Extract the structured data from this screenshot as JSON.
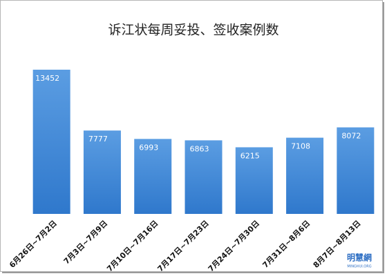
{
  "chart_data": {
    "type": "bar",
    "title": "诉江状每周妥投、签收案例数",
    "categories": [
      "6月26日~7月2日",
      "7月3日~7月9日",
      "7月10日~7月16日",
      "7月17日~7月23日",
      "7月24日~7月30日",
      "7月31日~8月6日",
      "8月7日~8月13日"
    ],
    "values": [
      13452,
      7777,
      6993,
      6863,
      6215,
      7108,
      8072
    ],
    "color": "#3f86d6"
  },
  "watermark": {
    "name": "明慧網",
    "site": "MINGHUI.ORG"
  }
}
